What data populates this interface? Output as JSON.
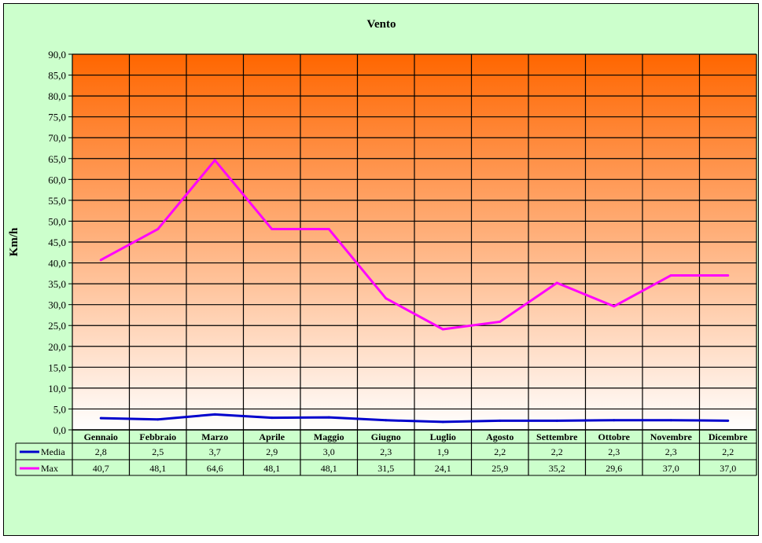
{
  "chart_data": {
    "type": "line",
    "title": "Vento",
    "ylabel": "Km/h",
    "xlabel": "",
    "ylim": [
      0,
      90
    ],
    "yticks": [
      "0,0",
      "5,0",
      "10,0",
      "15,0",
      "20,0",
      "25,0",
      "30,0",
      "35,0",
      "40,0",
      "45,0",
      "50,0",
      "55,0",
      "60,0",
      "65,0",
      "70,0",
      "75,0",
      "80,0",
      "85,0",
      "90,0"
    ],
    "grid": true,
    "legend": "data-table",
    "categories": [
      "Gennaio",
      "Febbraio",
      "Marzo",
      "Aprile",
      "Maggio",
      "Giugno",
      "Luglio",
      "Agosto",
      "Settembre",
      "Ottobre",
      "Novembre",
      "Dicembre"
    ],
    "series": [
      {
        "name": "Media",
        "color": "#0000cc",
        "values": [
          2.8,
          2.5,
          3.7,
          2.9,
          3.0,
          2.3,
          1.9,
          2.2,
          2.2,
          2.3,
          2.3,
          2.2
        ],
        "labels": [
          "2,8",
          "2,5",
          "3,7",
          "2,9",
          "3,0",
          "2,3",
          "1,9",
          "2,2",
          "2,2",
          "2,3",
          "2,3",
          "2,2"
        ]
      },
      {
        "name": "Max",
        "color": "#ff00ff",
        "values": [
          40.7,
          48.1,
          64.6,
          48.1,
          48.1,
          31.5,
          24.1,
          25.9,
          35.2,
          29.6,
          37.0,
          37.0
        ],
        "labels": [
          "40,7",
          "48,1",
          "64,6",
          "48,1",
          "48,1",
          "31,5",
          "24,1",
          "25,9",
          "35,2",
          "29,6",
          "37,0",
          "37,0"
        ]
      }
    ],
    "colors": {
      "chart_area": "#ccffcc",
      "plot_top": "#ff6600",
      "plot_bottom": "#ffffff",
      "grid": "#000000"
    }
  }
}
